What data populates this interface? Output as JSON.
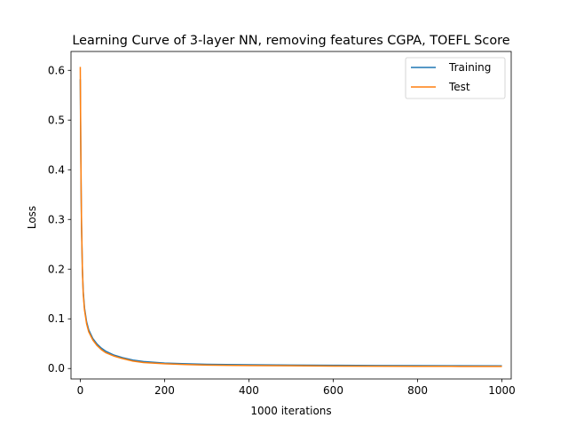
{
  "chart_data": {
    "type": "line",
    "title": "Learning Curve of 3-layer NN, removing features CGPA, TOEFL Score",
    "xlabel": "1000 iterations",
    "ylabel": "Loss",
    "xlim": [
      -22,
      1022
    ],
    "ylim": [
      -0.021,
      0.638
    ],
    "xticks": [
      0,
      200,
      400,
      600,
      800,
      1000
    ],
    "yticks": [
      0.0,
      0.1,
      0.2,
      0.3,
      0.4,
      0.5,
      0.6
    ],
    "xtick_labels": [
      "0",
      "200",
      "400",
      "600",
      "800",
      "1000"
    ],
    "ytick_labels": [
      "0.0",
      "0.1",
      "0.2",
      "0.3",
      "0.4",
      "0.5",
      "0.6"
    ],
    "grid": false,
    "legend_position": "top-right",
    "series": [
      {
        "name": "Training",
        "color": "#1f77b4",
        "x": [
          0,
          1,
          2,
          3,
          5,
          7,
          10,
          15,
          20,
          30,
          40,
          50,
          60,
          80,
          100,
          125,
          150,
          200,
          250,
          300,
          400,
          500,
          600,
          700,
          800,
          900,
          1000
        ],
        "y": [
          0.582,
          0.46,
          0.36,
          0.285,
          0.2,
          0.155,
          0.122,
          0.094,
          0.078,
          0.06,
          0.049,
          0.041,
          0.035,
          0.027,
          0.022,
          0.017,
          0.014,
          0.011,
          0.0095,
          0.0085,
          0.0075,
          0.007,
          0.0065,
          0.006,
          0.0057,
          0.0055,
          0.0053
        ]
      },
      {
        "name": "Test",
        "color": "#ff7f0e",
        "x": [
          0,
          1,
          2,
          3,
          5,
          7,
          10,
          15,
          20,
          30,
          40,
          50,
          60,
          80,
          100,
          125,
          150,
          200,
          250,
          300,
          400,
          500,
          600,
          700,
          800,
          900,
          1000
        ],
        "y": [
          0.607,
          0.47,
          0.365,
          0.29,
          0.2,
          0.15,
          0.118,
          0.09,
          0.074,
          0.057,
          0.046,
          0.038,
          0.032,
          0.025,
          0.02,
          0.015,
          0.012,
          0.0095,
          0.008,
          0.007,
          0.006,
          0.0055,
          0.005,
          0.0047,
          0.0045,
          0.0043,
          0.0042
        ]
      }
    ]
  }
}
